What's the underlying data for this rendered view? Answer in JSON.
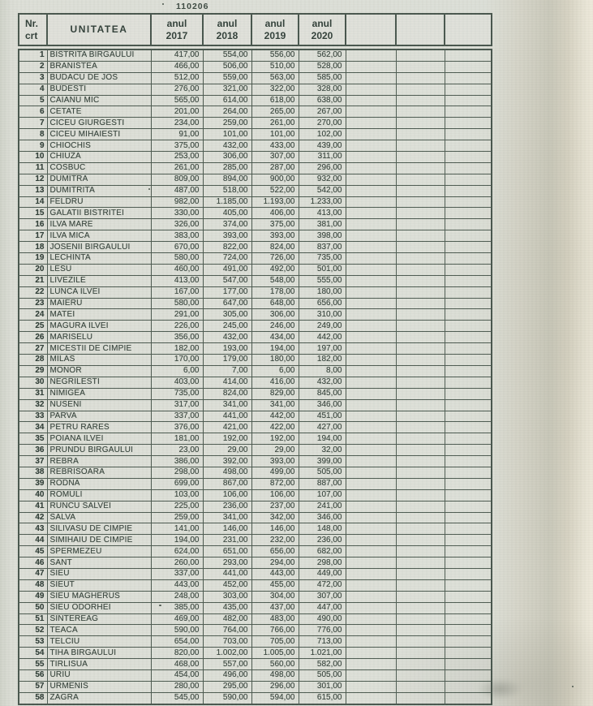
{
  "document": {
    "number": "110206"
  },
  "table": {
    "columns": {
      "nr_line1": "Nr.",
      "nr_line2": "crt",
      "unit": "UNITATEA",
      "years": [
        {
          "label": "anul",
          "year": "2017"
        },
        {
          "label": "anul",
          "year": "2018"
        },
        {
          "label": "anul",
          "year": "2019"
        },
        {
          "label": "anul",
          "year": "2020"
        }
      ],
      "empty_column_count": 3
    },
    "rows": [
      {
        "nr": "1",
        "name": "BISTRITA BIRGAULUI",
        "y2017": "417,00",
        "y2018": "554,00",
        "y2019": "556,00",
        "y2020": "562,00"
      },
      {
        "nr": "2",
        "name": "BRANISTEA",
        "y2017": "466,00",
        "y2018": "506,00",
        "y2019": "510,00",
        "y2020": "528,00"
      },
      {
        "nr": "3",
        "name": "BUDACU DE JOS",
        "y2017": "512,00",
        "y2018": "559,00",
        "y2019": "563,00",
        "y2020": "585,00"
      },
      {
        "nr": "4",
        "name": "BUDESTI",
        "y2017": "276,00",
        "y2018": "321,00",
        "y2019": "322,00",
        "y2020": "328,00"
      },
      {
        "nr": "5",
        "name": "CAIANU MIC",
        "y2017": "565,00",
        "y2018": "614,00",
        "y2019": "618,00",
        "y2020": "638,00"
      },
      {
        "nr": "6",
        "name": "CETATE",
        "y2017": "201,00",
        "y2018": "264,00",
        "y2019": "265,00",
        "y2020": "267,00"
      },
      {
        "nr": "7",
        "name": "CICEU GIURGESTI",
        "y2017": "234,00",
        "y2018": "259,00",
        "y2019": "261,00",
        "y2020": "270,00"
      },
      {
        "nr": "8",
        "name": "CICEU MIHAIESTI",
        "y2017": "91,00",
        "y2018": "101,00",
        "y2019": "101,00",
        "y2020": "102,00"
      },
      {
        "nr": "9",
        "name": "CHIOCHIS",
        "y2017": "375,00",
        "y2018": "432,00",
        "y2019": "433,00",
        "y2020": "439,00"
      },
      {
        "nr": "10",
        "name": "CHIUZA",
        "y2017": "253,00",
        "y2018": "306,00",
        "y2019": "307,00",
        "y2020": "311,00"
      },
      {
        "nr": "11",
        "name": "COSBUC",
        "y2017": "261,00",
        "y2018": "285,00",
        "y2019": "287,00",
        "y2020": "296,00"
      },
      {
        "nr": "12",
        "name": "DUMITRA",
        "y2017": "809,00",
        "y2018": "894,00",
        "y2019": "900,00",
        "y2020": "932,00"
      },
      {
        "nr": "13",
        "name": "DUMITRITA",
        "y2017": "487,00",
        "y2018": "518,00",
        "y2019": "522,00",
        "y2020": "542,00"
      },
      {
        "nr": "14",
        "name": "FELDRU",
        "y2017": "982,00",
        "y2018": "1.185,00",
        "y2019": "1.193,00",
        "y2020": "1.233,00"
      },
      {
        "nr": "15",
        "name": "GALATII BISTRITEI",
        "y2017": "330,00",
        "y2018": "405,00",
        "y2019": "406,00",
        "y2020": "413,00"
      },
      {
        "nr": "16",
        "name": "ILVA MARE",
        "y2017": "326,00",
        "y2018": "374,00",
        "y2019": "375,00",
        "y2020": "381,00"
      },
      {
        "nr": "17",
        "name": "ILVA MICA",
        "y2017": "383,00",
        "y2018": "393,00",
        "y2019": "393,00",
        "y2020": "398,00"
      },
      {
        "nr": "18",
        "name": "JOSENII BIRGAULUI",
        "y2017": "670,00",
        "y2018": "822,00",
        "y2019": "824,00",
        "y2020": "837,00"
      },
      {
        "nr": "19",
        "name": "LECHINTA",
        "y2017": "580,00",
        "y2018": "724,00",
        "y2019": "726,00",
        "y2020": "735,00"
      },
      {
        "nr": "20",
        "name": "LESU",
        "y2017": "460,00",
        "y2018": "491,00",
        "y2019": "492,00",
        "y2020": "501,00"
      },
      {
        "nr": "21",
        "name": "LIVEZILE",
        "y2017": "413,00",
        "y2018": "547,00",
        "y2019": "548,00",
        "y2020": "555,00"
      },
      {
        "nr": "22",
        "name": "LUNCA ILVEI",
        "y2017": "167,00",
        "y2018": "177,00",
        "y2019": "178,00",
        "y2020": "180,00"
      },
      {
        "nr": "23",
        "name": "MAIERU",
        "y2017": "580,00",
        "y2018": "647,00",
        "y2019": "648,00",
        "y2020": "656,00"
      },
      {
        "nr": "24",
        "name": "MATEI",
        "y2017": "291,00",
        "y2018": "305,00",
        "y2019": "306,00",
        "y2020": "310,00"
      },
      {
        "nr": "25",
        "name": "MAGURA ILVEI",
        "y2017": "226,00",
        "y2018": "245,00",
        "y2019": "246,00",
        "y2020": "249,00"
      },
      {
        "nr": "26",
        "name": "MARISELU",
        "y2017": "356,00",
        "y2018": "432,00",
        "y2019": "434,00",
        "y2020": "442,00"
      },
      {
        "nr": "27",
        "name": "MICESTII DE CIMPIE",
        "y2017": "182,00",
        "y2018": "193,00",
        "y2019": "194,00",
        "y2020": "197,00"
      },
      {
        "nr": "28",
        "name": "MILAS",
        "y2017": "170,00",
        "y2018": "179,00",
        "y2019": "180,00",
        "y2020": "182,00"
      },
      {
        "nr": "29",
        "name": "MONOR",
        "y2017": "6,00",
        "y2018": "7,00",
        "y2019": "6,00",
        "y2020": "8,00"
      },
      {
        "nr": "30",
        "name": "NEGRILESTI",
        "y2017": "403,00",
        "y2018": "414,00",
        "y2019": "416,00",
        "y2020": "432,00"
      },
      {
        "nr": "31",
        "name": "NIMIGEA",
        "y2017": "735,00",
        "y2018": "824,00",
        "y2019": "829,00",
        "y2020": "845,00"
      },
      {
        "nr": "32",
        "name": "NUSENI",
        "y2017": "317,00",
        "y2018": "341,00",
        "y2019": "341,00",
        "y2020": "346,00"
      },
      {
        "nr": "33",
        "name": "PARVA",
        "y2017": "337,00",
        "y2018": "441,00",
        "y2019": "442,00",
        "y2020": "451,00"
      },
      {
        "nr": "34",
        "name": "PETRU RARES",
        "y2017": "376,00",
        "y2018": "421,00",
        "y2019": "422,00",
        "y2020": "427,00"
      },
      {
        "nr": "35",
        "name": "POIANA ILVEI",
        "y2017": "181,00",
        "y2018": "192,00",
        "y2019": "192,00",
        "y2020": "194,00"
      },
      {
        "nr": "36",
        "name": "PRUNDU BIRGAULUI",
        "y2017": "23,00",
        "y2018": "29,00",
        "y2019": "29,00",
        "y2020": "32,00"
      },
      {
        "nr": "37",
        "name": "REBRA",
        "y2017": "386,00",
        "y2018": "392,00",
        "y2019": "393,00",
        "y2020": "399,00"
      },
      {
        "nr": "38",
        "name": "REBRISOARA",
        "y2017": "298,00",
        "y2018": "498,00",
        "y2019": "499,00",
        "y2020": "505,00"
      },
      {
        "nr": "39",
        "name": "RODNA",
        "y2017": "699,00",
        "y2018": "867,00",
        "y2019": "872,00",
        "y2020": "887,00"
      },
      {
        "nr": "40",
        "name": "ROMULI",
        "y2017": "103,00",
        "y2018": "106,00",
        "y2019": "106,00",
        "y2020": "107,00"
      },
      {
        "nr": "41",
        "name": "RUNCU SALVEI",
        "y2017": "225,00",
        "y2018": "236,00",
        "y2019": "237,00",
        "y2020": "241,00"
      },
      {
        "nr": "42",
        "name": "SALVA",
        "y2017": "259,00",
        "y2018": "341,00",
        "y2019": "342,00",
        "y2020": "346,00"
      },
      {
        "nr": "43",
        "name": "SILIVASU DE CIMPIE",
        "y2017": "141,00",
        "y2018": "146,00",
        "y2019": "146,00",
        "y2020": "148,00"
      },
      {
        "nr": "44",
        "name": "SIMIHAIU DE CIMPIE",
        "y2017": "194,00",
        "y2018": "231,00",
        "y2019": "232,00",
        "y2020": "236,00"
      },
      {
        "nr": "45",
        "name": "SPERMEZEU",
        "y2017": "624,00",
        "y2018": "651,00",
        "y2019": "656,00",
        "y2020": "682,00"
      },
      {
        "nr": "46",
        "name": "SANT",
        "y2017": "260,00",
        "y2018": "293,00",
        "y2019": "294,00",
        "y2020": "298,00"
      },
      {
        "nr": "47",
        "name": "SIEU",
        "y2017": "337,00",
        "y2018": "441,00",
        "y2019": "443,00",
        "y2020": "449,00"
      },
      {
        "nr": "48",
        "name": "SIEUT",
        "y2017": "443,00",
        "y2018": "452,00",
        "y2019": "455,00",
        "y2020": "472,00"
      },
      {
        "nr": "49",
        "name": "SIEU MAGHERUS",
        "y2017": "248,00",
        "y2018": "303,00",
        "y2019": "304,00",
        "y2020": "307,00"
      },
      {
        "nr": "50",
        "name": "SIEU ODORHEI",
        "y2017": "385,00",
        "y2018": "435,00",
        "y2019": "437,00",
        "y2020": "447,00"
      },
      {
        "nr": "51",
        "name": "SINTEREAG",
        "y2017": "469,00",
        "y2018": "482,00",
        "y2019": "483,00",
        "y2020": "490,00"
      },
      {
        "nr": "52",
        "name": "TEACA",
        "y2017": "590,00",
        "y2018": "764,00",
        "y2019": "766,00",
        "y2020": "776,00"
      },
      {
        "nr": "53",
        "name": "TELCIU",
        "y2017": "654,00",
        "y2018": "703,00",
        "y2019": "705,00",
        "y2020": "713,00"
      },
      {
        "nr": "54",
        "name": "TIHA BIRGAULUI",
        "y2017": "820,00",
        "y2018": "1.002,00",
        "y2019": "1.005,00",
        "y2020": "1.021,00"
      },
      {
        "nr": "55",
        "name": "TIRLISUA",
        "y2017": "468,00",
        "y2018": "557,00",
        "y2019": "560,00",
        "y2020": "582,00"
      },
      {
        "nr": "56",
        "name": "URIU",
        "y2017": "454,00",
        "y2018": "496,00",
        "y2019": "498,00",
        "y2020": "505,00"
      },
      {
        "nr": "57",
        "name": "URMENIS",
        "y2017": "280,00",
        "y2018": "295,00",
        "y2019": "296,00",
        "y2020": "301,00"
      },
      {
        "nr": "58",
        "name": "ZAGRA",
        "y2017": "545,00",
        "y2018": "590,00",
        "y2019": "594,00",
        "y2020": "615,00"
      }
    ]
  },
  "colors": {
    "paper": "#dcded6",
    "paper_edge_band": "#c9c8ba",
    "paper_edge_light": "#efeadb",
    "border": "#46544b",
    "text": "#37443c"
  }
}
